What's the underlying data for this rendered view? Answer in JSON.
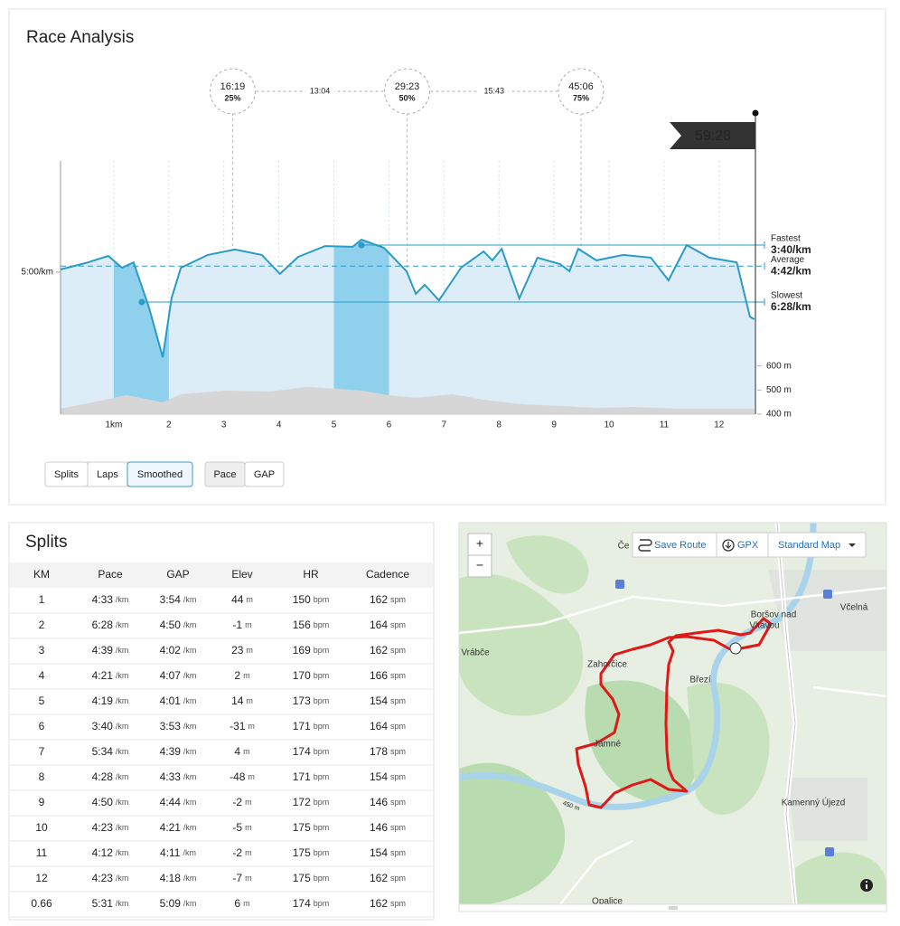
{
  "title": "Race Analysis",
  "chart_data": {
    "type": "line",
    "xlim": [
      0,
      12.66
    ],
    "xticks": [
      {
        "value": 1,
        "label": "1km"
      },
      2,
      3,
      4,
      5,
      6,
      7,
      8,
      9,
      10,
      11,
      12
    ],
    "ylim": [
      600,
      0
    ],
    "yticks": [
      {
        "value": 300,
        "label": "5:00/km"
      }
    ],
    "y2lim": [
      400,
      1450
    ],
    "y2ticks": [
      {
        "value": 400,
        "label": "400 m"
      },
      {
        "value": 500,
        "label": "500 m"
      },
      {
        "value": 600,
        "label": "600 m"
      }
    ],
    "series": [
      {
        "color": "#2a9bc8",
        "x": [
          0.03,
          0.49,
          0.9,
          1.15,
          1.36,
          1.64,
          1.89,
          2.05,
          2.22,
          2.71,
          3.2,
          3.69,
          4.02,
          4.35,
          4.84,
          5.34,
          5.5,
          5.91,
          6.32,
          6.49,
          6.65,
          6.91,
          7.31,
          7.72,
          7.88,
          8.05,
          8.37,
          8.7,
          9.11,
          9.28,
          9.44,
          9.77,
          10.26,
          10.76,
          11.08,
          11.41,
          11.82,
          12.32,
          12.56,
          12.64
        ],
        "values": [
          292,
          273,
          252,
          287,
          271,
          404,
          551,
          377,
          287,
          249,
          233,
          249,
          305,
          255,
          223,
          225,
          204,
          228,
          297,
          364,
          337,
          383,
          287,
          239,
          265,
          231,
          377,
          257,
          276,
          297,
          231,
          265,
          249,
          257,
          324,
          220,
          257,
          271,
          431,
          439
        ]
      },
      {
        "color": "#d6d6d6",
        "axis": "y2",
        "x": [
          0.03,
          0.62,
          1.23,
          1.89,
          2.22,
          3.04,
          3.86,
          4.52,
          5.01,
          5.5,
          5.99,
          6.49,
          7.14,
          7.8,
          8.46,
          9.11,
          9.77,
          10.43,
          11.25,
          12.07,
          12.64
        ],
        "values": [
          423,
          449,
          479,
          449,
          483,
          498,
          494,
          513,
          506,
          498,
          479,
          468,
          483,
          457,
          441,
          434,
          426,
          430,
          423,
          423,
          423
        ]
      }
    ],
    "highlights": [
      [
        1,
        2
      ],
      [
        5,
        6
      ]
    ],
    "highlight_color": "#8fd0ec",
    "reference_lines": [
      {
        "label": "Fastest",
        "value": 220,
        "value_label": "3:40/km",
        "x": 5.5
      },
      {
        "label": "Average",
        "value": 282,
        "value_label": "4:42/km",
        "dashed": true
      },
      {
        "label": "Slowest",
        "value": 388,
        "value_label": "6:28/km",
        "x": 1.51
      }
    ],
    "markers": [
      {
        "time": "16:19",
        "percent": "25%",
        "x": 3.16
      },
      {
        "time": "29:23",
        "percent": "50%",
        "x": 6.33
      },
      {
        "time": "45:06",
        "percent": "75%",
        "x": 9.49
      }
    ],
    "intervals": [
      "13:04",
      "15:43"
    ],
    "finish_time": "59:28"
  },
  "controls": {
    "view_buttons": [
      "Splits",
      "Laps",
      "Smoothed"
    ],
    "metric_buttons": [
      "Pace",
      "GAP"
    ]
  },
  "splits": {
    "title": "Splits",
    "columns": [
      {
        "label": "KM"
      },
      {
        "label": "Pace",
        "unit": "/km"
      },
      {
        "label": "GAP",
        "unit": "/km"
      },
      {
        "label": "Elev",
        "unit": "m"
      },
      {
        "label": "HR",
        "unit": "bpm"
      },
      {
        "label": "Cadence",
        "unit": "spm"
      }
    ],
    "rows": [
      [
        "1",
        "4:33",
        "3:54",
        "44",
        "150",
        "162"
      ],
      [
        "2",
        "6:28",
        "4:50",
        "-1",
        "156",
        "164"
      ],
      [
        "3",
        "4:39",
        "4:02",
        "23",
        "169",
        "162"
      ],
      [
        "4",
        "4:21",
        "4:07",
        "2",
        "170",
        "166"
      ],
      [
        "5",
        "4:19",
        "4:01",
        "14",
        "173",
        "154"
      ],
      [
        "6",
        "3:40",
        "3:53",
        "-31",
        "171",
        "164"
      ],
      [
        "7",
        "5:34",
        "4:39",
        "4",
        "174",
        "178"
      ],
      [
        "8",
        "4:28",
        "4:33",
        "-48",
        "171",
        "154"
      ],
      [
        "9",
        "4:50",
        "4:44",
        "-2",
        "172",
        "146"
      ],
      [
        "10",
        "4:23",
        "4:21",
        "-5",
        "175",
        "146"
      ],
      [
        "11",
        "4:12",
        "4:11",
        "-2",
        "175",
        "154"
      ],
      [
        "12",
        "4:23",
        "4:18",
        "-7",
        "175",
        "162"
      ],
      [
        "0.66",
        "5:31",
        "5:09",
        "6",
        "174",
        "162"
      ]
    ]
  },
  "map": {
    "controls": {
      "zoom_in": "+",
      "zoom_out": "−",
      "save_route": "Save Route",
      "gpx": "GPX",
      "layer": "Standard Map"
    },
    "places": [
      {
        "name": "Če"
      },
      {
        "lines": [
          "Boršov nad",
          "Vltavou"
        ]
      },
      {
        "name": "Včelná"
      },
      {
        "name": "Vrábče"
      },
      {
        "name": "Zahorčice"
      },
      {
        "name": "Březí"
      },
      {
        "name": "Jamné"
      },
      {
        "name": "Kamenný Újezd"
      },
      {
        "name": "Opalice"
      }
    ],
    "contour_label": "450 m"
  }
}
